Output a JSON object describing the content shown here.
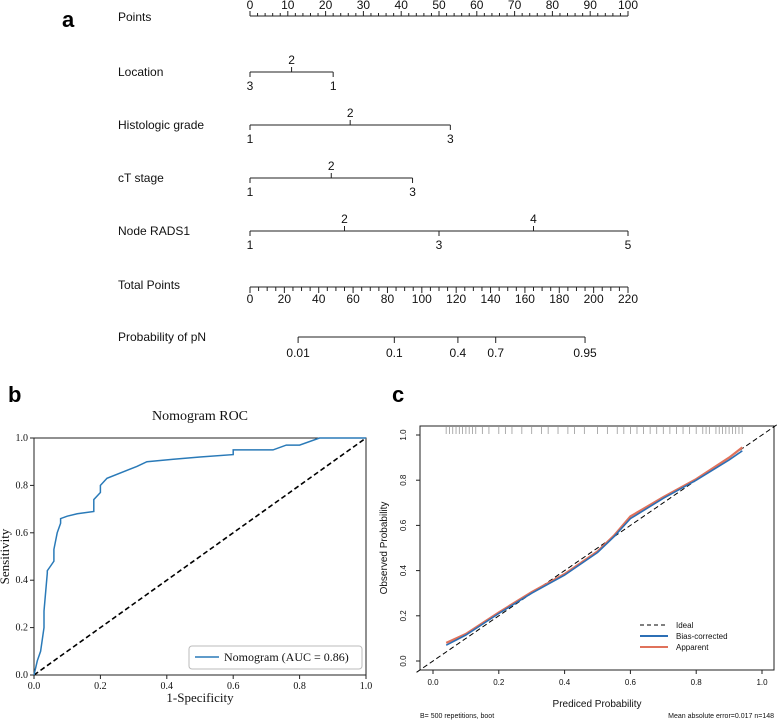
{
  "chart_data": [
    {
      "panel": "a",
      "type": "nomogram",
      "points_axis": {
        "label": "Points",
        "min": 0,
        "max": 100,
        "ticks": [
          0,
          10,
          20,
          30,
          40,
          50,
          60,
          70,
          80,
          90,
          100
        ]
      },
      "variables": [
        {
          "label": "Location",
          "levels": [
            {
              "label": "3",
              "points": 0,
              "row": "below"
            },
            {
              "label": "2",
              "points": 11,
              "row": "above"
            },
            {
              "label": "1",
              "points": 22,
              "row": "below"
            }
          ]
        },
        {
          "label": "Histologic grade",
          "levels": [
            {
              "label": "1",
              "points": 0,
              "row": "below"
            },
            {
              "label": "2",
              "points": 26.5,
              "row": "above"
            },
            {
              "label": "3",
              "points": 53,
              "row": "below"
            }
          ]
        },
        {
          "label": "cT stage",
          "levels": [
            {
              "label": "1",
              "points": 0,
              "row": "below"
            },
            {
              "label": "2",
              "points": 21.5,
              "row": "above"
            },
            {
              "label": "3",
              "points": 43,
              "row": "below"
            }
          ]
        },
        {
          "label": "Node RADS1",
          "levels": [
            {
              "label": "1",
              "points": 0,
              "row": "below"
            },
            {
              "label": "2",
              "points": 25,
              "row": "above"
            },
            {
              "label": "3",
              "points": 50,
              "row": "below"
            },
            {
              "label": "4",
              "points": 75,
              "row": "above"
            },
            {
              "label": "5",
              "points": 100,
              "row": "below"
            }
          ]
        }
      ],
      "total_points_axis": {
        "label": "Total Points",
        "min": 0,
        "max": 220,
        "ticks": [
          0,
          20,
          40,
          60,
          80,
          100,
          120,
          140,
          160,
          180,
          200,
          220
        ]
      },
      "probability_axis": {
        "label": "Probability of pN",
        "range_total_points": [
          28,
          195
        ],
        "ticks": [
          {
            "label": "0.01",
            "total_points": 28
          },
          {
            "label": "0.1",
            "total_points": 84
          },
          {
            "label": "0.4",
            "total_points": 121
          },
          {
            "label": "0.7",
            "total_points": 143
          },
          {
            "label": "0.95",
            "total_points": 195
          }
        ]
      }
    },
    {
      "panel": "b",
      "type": "line",
      "title": "Nomogram ROC",
      "xlabel": "1-Specificity",
      "ylabel": "Sensitivity",
      "xlim": [
        0,
        1
      ],
      "ylim": [
        0,
        1
      ],
      "ticks": [
        "0.0",
        "0.2",
        "0.4",
        "0.6",
        "0.8",
        "1.0"
      ],
      "legend": "Nomogram (AUC = 0.86)",
      "series": [
        {
          "name": "Nomogram",
          "color": "#2a7ab8",
          "x": [
            0,
            0.01,
            0.02,
            0.03,
            0.03,
            0.04,
            0.04,
            0.05,
            0.06,
            0.06,
            0.07,
            0.08,
            0.08,
            0.1,
            0.13,
            0.18,
            0.18,
            0.2,
            0.2,
            0.22,
            0.31,
            0.34,
            0.42,
            0.5,
            0.6,
            0.6,
            0.72,
            0.76,
            0.8,
            0.86,
            1.0
          ],
          "y": [
            0,
            0.06,
            0.1,
            0.2,
            0.27,
            0.43,
            0.44,
            0.46,
            0.48,
            0.53,
            0.6,
            0.64,
            0.66,
            0.67,
            0.68,
            0.69,
            0.74,
            0.77,
            0.8,
            0.83,
            0.88,
            0.9,
            0.91,
            0.92,
            0.93,
            0.95,
            0.95,
            0.97,
            0.97,
            1.0,
            1.0
          ]
        },
        {
          "name": "Reference",
          "color": "#000000",
          "x": [
            0,
            1
          ],
          "y": [
            0,
            1
          ]
        }
      ]
    },
    {
      "panel": "c",
      "type": "line",
      "xlabel": "Prediced Probability",
      "ylabel": "Observed Probability",
      "xlim": [
        0,
        1
      ],
      "ylim": [
        0,
        1
      ],
      "ticks": [
        "0.0",
        "0.2",
        "0.4",
        "0.6",
        "0.8",
        "1.0"
      ],
      "legend": [
        "Ideal",
        "Bias-corrected",
        "Apparent"
      ],
      "footnote_left": "B= 500 repetitions, boot",
      "footnote_right": "Mean absolute error=0.017 n=148",
      "rug": [
        0.04,
        0.05,
        0.06,
        0.07,
        0.08,
        0.09,
        0.1,
        0.11,
        0.12,
        0.13,
        0.15,
        0.17,
        0.2,
        0.22,
        0.24,
        0.27,
        0.3,
        0.33,
        0.35,
        0.38,
        0.41,
        0.43,
        0.46,
        0.5,
        0.53,
        0.56,
        0.58,
        0.6,
        0.62,
        0.64,
        0.66,
        0.68,
        0.7,
        0.72,
        0.74,
        0.76,
        0.78,
        0.8,
        0.82,
        0.83,
        0.84,
        0.86,
        0.87,
        0.88,
        0.89,
        0.9,
        0.91,
        0.92,
        0.93,
        0.94
      ],
      "series": [
        {
          "name": "Ideal",
          "color": "#000000",
          "x": [
            -0.05,
            1.05
          ],
          "y": [
            -0.05,
            1.05
          ]
        },
        {
          "name": "Bias-corrected",
          "color": "#2c6fb5",
          "x": [
            0.04,
            0.1,
            0.2,
            0.3,
            0.4,
            0.5,
            0.55,
            0.6,
            0.7,
            0.8,
            0.9,
            0.94
          ],
          "y": [
            0.07,
            0.115,
            0.21,
            0.3,
            0.38,
            0.48,
            0.55,
            0.63,
            0.72,
            0.8,
            0.89,
            0.93
          ]
        },
        {
          "name": "Apparent",
          "color": "#e0725b",
          "x": [
            0.04,
            0.1,
            0.2,
            0.3,
            0.4,
            0.5,
            0.55,
            0.6,
            0.7,
            0.8,
            0.9,
            0.94
          ],
          "y": [
            0.08,
            0.12,
            0.215,
            0.305,
            0.385,
            0.485,
            0.555,
            0.64,
            0.725,
            0.805,
            0.9,
            0.945
          ]
        }
      ]
    }
  ]
}
